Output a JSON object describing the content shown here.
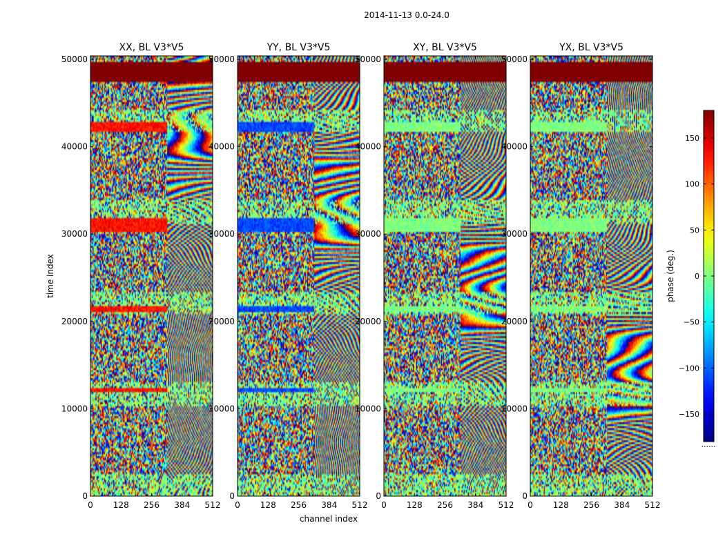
{
  "chart_data": {
    "type": "heatmap",
    "title": "2014-11-13 0.0-24.0",
    "xlabel": "channel index",
    "ylabel": "time index",
    "xlim": [
      0,
      512
    ],
    "ylim": [
      0,
      50400
    ],
    "xticks": [
      0,
      128,
      256,
      384,
      512
    ],
    "yticks": [
      0,
      10000,
      20000,
      30000,
      40000,
      50000
    ],
    "colorbar": {
      "label": "phase (deg.)",
      "range": [
        -180,
        180
      ],
      "ticks": [
        150,
        100,
        50,
        0,
        -50,
        -100,
        -150
      ],
      "tick_labels": [
        "150",
        "100",
        "50",
        "0",
        "−50",
        "−100",
        "−150"
      ],
      "colormap": "jet",
      "footnote": "......"
    },
    "panels": [
      {
        "title": "XX, BL V3*V5",
        "polarization": "XX"
      },
      {
        "title": "YY, BL V3*V5",
        "polarization": "YY"
      },
      {
        "title": "XY, BL V3*V5",
        "polarization": "XY"
      },
      {
        "title": "YX, BL V3*V5",
        "polarization": "YX"
      }
    ],
    "features": {
      "flagged_rows": [
        [
          47400,
          49600
        ]
      ],
      "calibration_bands": [
        [
          21000,
          21700
        ],
        [
          30300,
          31900
        ],
        [
          41800,
          42900
        ],
        [
          11900,
          12400
        ]
      ],
      "calibration_phase_deg": {
        "XX": 130,
        "YY": -110,
        "XY": 0,
        "YX": 0
      },
      "fringe_channel_start": 320
    }
  },
  "colors": {
    "flagged": "#800000",
    "background": "#ffffff",
    "axes": "#000000"
  }
}
